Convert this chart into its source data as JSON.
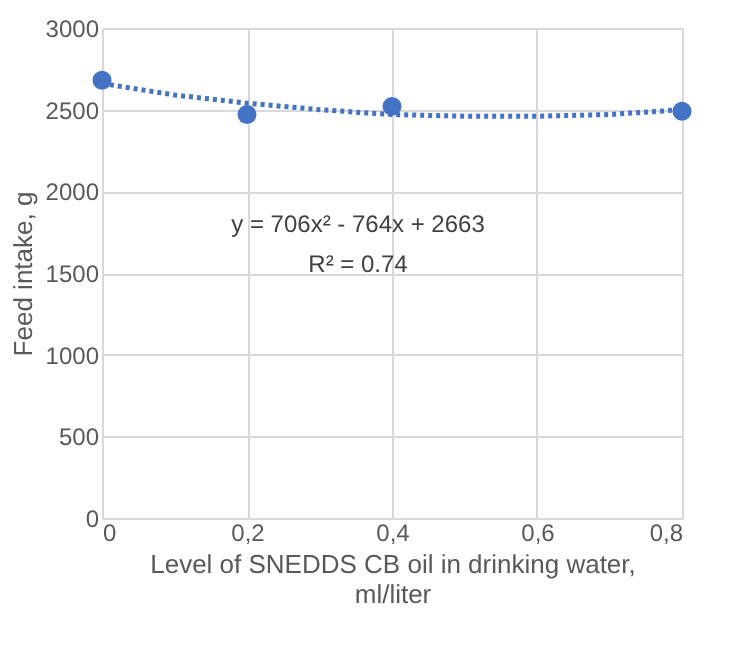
{
  "chart_data": {
    "type": "scatter",
    "xlabel": "Level of SNEDDS CB oil in drinking water, ml/liter",
    "ylabel": "Feed intake, g",
    "series": [
      {
        "type": "scatter",
        "color": "#4472c4",
        "marker": "circle",
        "x": [
          0,
          0.2,
          0.4,
          0.8
        ],
        "values": [
          2680,
          2470,
          2520,
          2490
        ]
      },
      {
        "type": "line",
        "color": "#4472c4",
        "line_style": "dotted",
        "marker": "none",
        "x": [
          0,
          0.1,
          0.2,
          0.3,
          0.4,
          0.5,
          0.6,
          0.7,
          0.8
        ],
        "values": [
          2660,
          2590,
          2540,
          2500,
          2470,
          2460,
          2460,
          2470,
          2500
        ]
      }
    ],
    "xlim": [
      0,
      0.8
    ],
    "ylim": [
      0,
      3000
    ],
    "xticks": [
      0,
      {
        "value": 0.2,
        "label": "0,2"
      },
      {
        "value": 0.4,
        "label": "0,4"
      },
      {
        "value": 0.6,
        "label": "0,6"
      },
      {
        "value": 0.8,
        "label": "0,8"
      }
    ],
    "yticks": [
      0,
      500,
      1000,
      1500,
      2000,
      2500,
      3000
    ],
    "annotations": [
      "y = 706x² - 764x + 2663",
      "R² = 0.74"
    ],
    "grid": true
  }
}
